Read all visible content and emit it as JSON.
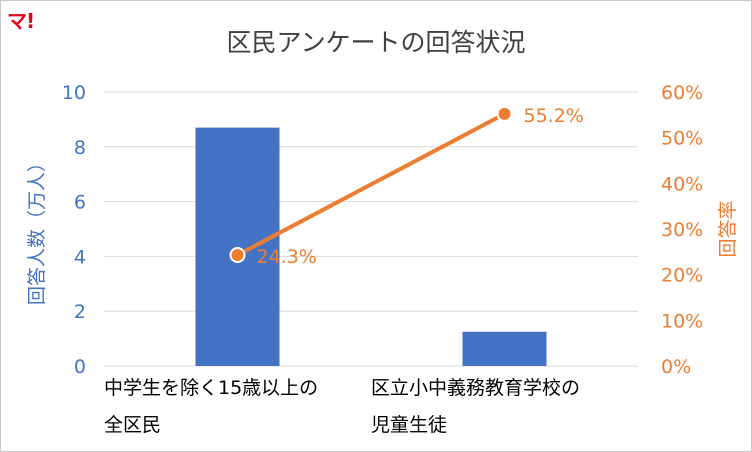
{
  "logo_text": "マ!",
  "chart_data": {
    "type": "bar",
    "title": "区民アンケートの回答状況",
    "categories": [
      [
        "中学生を除く15歳以上の",
        "全区民"
      ],
      [
        "区立小中義務教育学校の",
        "児童生徒"
      ]
    ],
    "series": [
      {
        "axis": "left",
        "type": "bar",
        "values": [
          8.7,
          1.25
        ]
      },
      {
        "axis": "right",
        "type": "line",
        "values": [
          24.3,
          55.2
        ],
        "labels": [
          "24.3%",
          "55.2%"
        ]
      }
    ],
    "ylabel": "回答人数（万人）",
    "y2label": "回答率",
    "ylim": [
      0,
      10
    ],
    "y2lim": [
      0,
      60
    ],
    "yticks": [
      "0",
      "2",
      "4",
      "6",
      "8",
      "10"
    ],
    "y2ticks": [
      "0%",
      "10%",
      "20%",
      "30%",
      "40%",
      "50%",
      "60%"
    ],
    "grid": true,
    "colors": {
      "bar": "#4472c4",
      "line": "#ed7d31",
      "grid": "#d9d9d9"
    }
  }
}
